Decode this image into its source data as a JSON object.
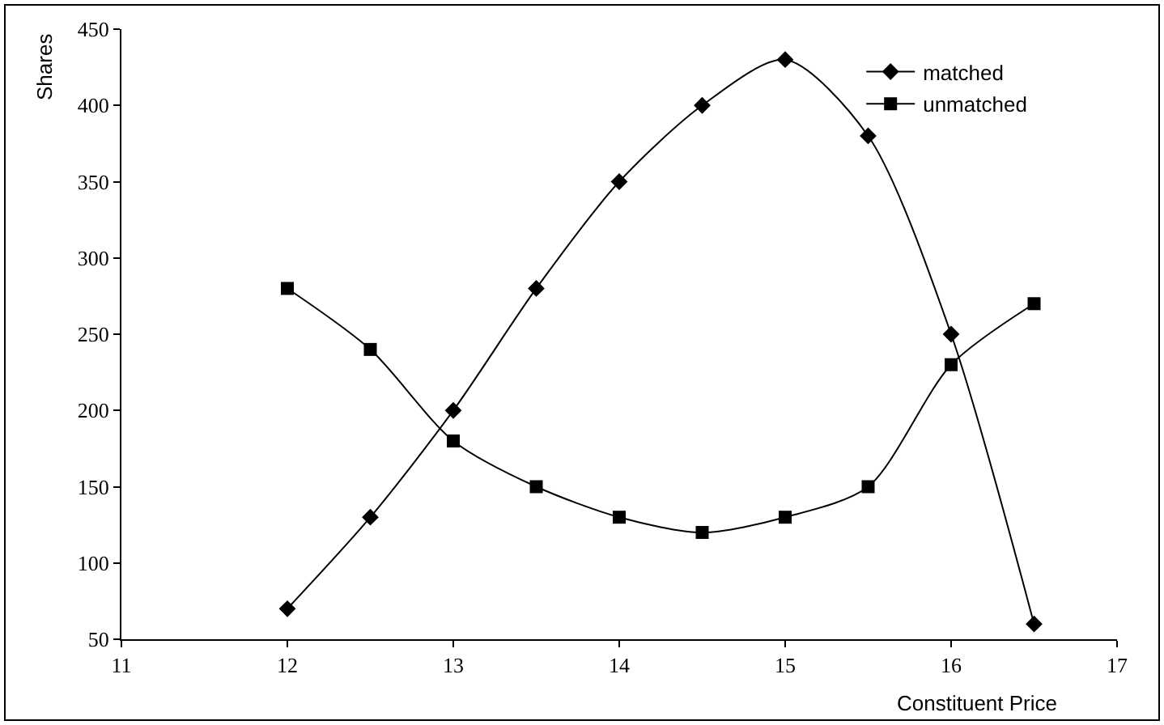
{
  "chart_data": {
    "type": "line",
    "xlabel": "Constituent Price",
    "ylabel": "Shares",
    "x": [
      12,
      12.5,
      13,
      13.5,
      14,
      14.5,
      15,
      15.5,
      16,
      16.5
    ],
    "series": [
      {
        "name": "matched",
        "color": "#000000",
        "marker": "diamond",
        "values": [
          70,
          130,
          200,
          280,
          350,
          400,
          430,
          380,
          250,
          60
        ]
      },
      {
        "name": "unmatched",
        "color": "#000000",
        "marker": "square",
        "values": [
          280,
          240,
          180,
          150,
          130,
          120,
          130,
          150,
          230,
          270
        ]
      }
    ],
    "xlim": [
      11,
      17
    ],
    "xticks": [
      11,
      12,
      13,
      14,
      15,
      16,
      17
    ],
    "ylim": [
      50,
      450
    ],
    "yticks": [
      50,
      100,
      150,
      200,
      250,
      300,
      350,
      400,
      450
    ],
    "grid": false,
    "legend": "top right",
    "line_style": "solid"
  }
}
